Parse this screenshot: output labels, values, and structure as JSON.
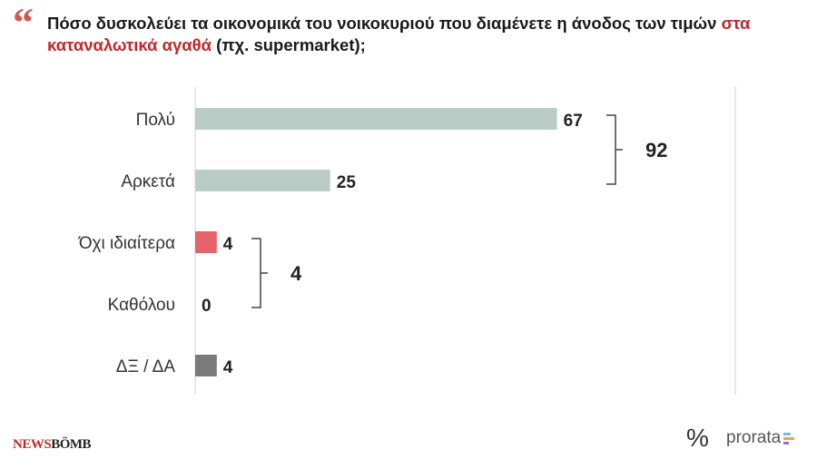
{
  "title": {
    "part1": "Πόσο δυσκολεύει τα οικονομικά του νοικοκυριού που διαμένετε η άνοδος των τιμών ",
    "highlight": "στα καταναλωτικά αγαθά",
    "part2": " (πχ. supermarket);"
  },
  "chart_data": {
    "type": "bar",
    "orientation": "horizontal",
    "categories": [
      "Πολύ",
      "Αρκετά",
      "Όχι ιδιαίτερα",
      "Καθόλου",
      "ΔΞ / ΔΑ"
    ],
    "values": [
      67,
      25,
      4,
      0,
      4
    ],
    "labels": [
      "67",
      "25",
      "4",
      "0",
      "4"
    ],
    "colors": [
      "#b9cdc6",
      "#b9cdc6",
      "#e8626a",
      "#e8626a",
      "#7a7a7a"
    ],
    "xlim": [
      0,
      100
    ],
    "groups": [
      {
        "members": [
          0,
          1
        ],
        "label": "92"
      },
      {
        "members": [
          2,
          3
        ],
        "label": "4"
      }
    ]
  },
  "colors": {
    "accent": "#c0282d",
    "axis": "#d0d0d0",
    "bracket": "#444444"
  },
  "logos": {
    "newsbomb_a": "NEWS",
    "newsbomb_b": "BÖMB",
    "prorata_symbol": "%",
    "prorata": "prorata"
  }
}
